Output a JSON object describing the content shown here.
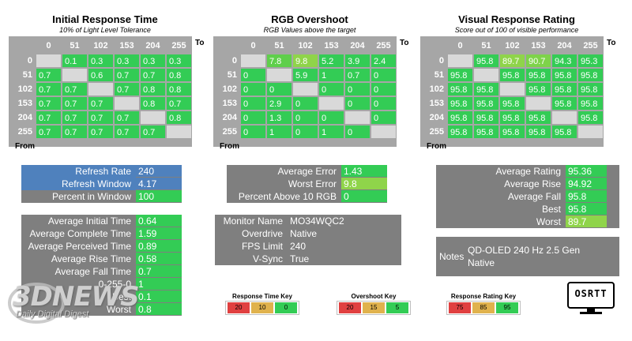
{
  "matrices": [
    {
      "id": "initial",
      "title": "Initial Response Time",
      "subtitle": "10% of Light Level Tolerance",
      "cols": [
        "0",
        "51",
        "102",
        "153",
        "204",
        "255"
      ],
      "rows": [
        "0",
        "51",
        "102",
        "153",
        "204",
        "255"
      ],
      "to_label": "To",
      "from_label": "From",
      "values": [
        [
          "",
          "0.1",
          "0.3",
          "0.3",
          "0.3",
          "0.3"
        ],
        [
          "0.7",
          "",
          "0.6",
          "0.7",
          "0.7",
          "0.8"
        ],
        [
          "0.7",
          "0.7",
          "",
          "0.7",
          "0.8",
          "0.8"
        ],
        [
          "0.7",
          "0.7",
          "0.7",
          "",
          "0.8",
          "0.7"
        ],
        [
          "0.7",
          "0.7",
          "0.7",
          "0.7",
          "",
          "0.8"
        ],
        [
          "0.7",
          "0.7",
          "0.7",
          "0.7",
          "0.7",
          ""
        ]
      ],
      "colors": [
        [
          "#d9d9d9",
          "#33cc55",
          "#33cc55",
          "#33cc55",
          "#33cc55",
          "#33cc55"
        ],
        [
          "#33cc55",
          "#d9d9d9",
          "#33cc55",
          "#33cc55",
          "#33cc55",
          "#33cc55"
        ],
        [
          "#33cc55",
          "#33cc55",
          "#d9d9d9",
          "#33cc55",
          "#33cc55",
          "#33cc55"
        ],
        [
          "#33cc55",
          "#33cc55",
          "#33cc55",
          "#d9d9d9",
          "#33cc55",
          "#33cc55"
        ],
        [
          "#33cc55",
          "#33cc55",
          "#33cc55",
          "#33cc55",
          "#d9d9d9",
          "#33cc55"
        ],
        [
          "#33cc55",
          "#33cc55",
          "#33cc55",
          "#33cc55",
          "#33cc55",
          "#d9d9d9"
        ]
      ]
    },
    {
      "id": "overshoot",
      "title": "RGB Overshoot",
      "subtitle": "RGB Values above the target",
      "cols": [
        "0",
        "51",
        "102",
        "153",
        "204",
        "255"
      ],
      "rows": [
        "0",
        "51",
        "102",
        "153",
        "204",
        "255"
      ],
      "to_label": "To",
      "from_label": "From",
      "values": [
        [
          "",
          "7.8",
          "9.8",
          "5.2",
          "3.9",
          "2.4"
        ],
        [
          "0",
          "",
          "5.9",
          "1",
          "0.7",
          "0"
        ],
        [
          "0",
          "0",
          "",
          "0",
          "0",
          "0"
        ],
        [
          "0",
          "2.9",
          "0",
          "",
          "0",
          "0"
        ],
        [
          "0",
          "1.3",
          "0",
          "0",
          "",
          "0"
        ],
        [
          "0",
          "1",
          "0",
          "1",
          "0",
          ""
        ]
      ],
      "colors": [
        [
          "#d9d9d9",
          "#5fcf4b",
          "#8fd44a",
          "#33cc55",
          "#33cc55",
          "#33cc55"
        ],
        [
          "#33cc55",
          "#d9d9d9",
          "#33cc55",
          "#33cc55",
          "#33cc55",
          "#33cc55"
        ],
        [
          "#33cc55",
          "#33cc55",
          "#d9d9d9",
          "#33cc55",
          "#33cc55",
          "#33cc55"
        ],
        [
          "#33cc55",
          "#33cc55",
          "#33cc55",
          "#d9d9d9",
          "#33cc55",
          "#33cc55"
        ],
        [
          "#33cc55",
          "#33cc55",
          "#33cc55",
          "#33cc55",
          "#d9d9d9",
          "#33cc55"
        ],
        [
          "#33cc55",
          "#33cc55",
          "#33cc55",
          "#33cc55",
          "#33cc55",
          "#d9d9d9"
        ]
      ]
    },
    {
      "id": "rating",
      "title": "Visual Response Rating",
      "subtitle": "Score out of 100 of visible performance",
      "cols": [
        "0",
        "51",
        "102",
        "153",
        "204",
        "255"
      ],
      "rows": [
        "0",
        "51",
        "102",
        "153",
        "204",
        "255"
      ],
      "to_label": "To",
      "from_label": "From",
      "values": [
        [
          "",
          "95.8",
          "89.7",
          "90.7",
          "94.3",
          "95.3"
        ],
        [
          "95.8",
          "",
          "95.8",
          "95.8",
          "95.8",
          "95.8"
        ],
        [
          "95.8",
          "95.8",
          "",
          "95.8",
          "95.8",
          "95.8"
        ],
        [
          "95.8",
          "95.8",
          "95.8",
          "",
          "95.8",
          "95.8"
        ],
        [
          "95.8",
          "95.8",
          "95.8",
          "95.8",
          "",
          "95.8"
        ],
        [
          "95.8",
          "95.8",
          "95.8",
          "95.8",
          "95.8",
          ""
        ]
      ],
      "colors": [
        [
          "#d9d9d9",
          "#33cc55",
          "#8fd44a",
          "#7ed34a",
          "#33cc55",
          "#33cc55"
        ],
        [
          "#33cc55",
          "#d9d9d9",
          "#33cc55",
          "#33cc55",
          "#33cc55",
          "#33cc55"
        ],
        [
          "#33cc55",
          "#33cc55",
          "#d9d9d9",
          "#33cc55",
          "#33cc55",
          "#33cc55"
        ],
        [
          "#33cc55",
          "#33cc55",
          "#33cc55",
          "#d9d9d9",
          "#33cc55",
          "#33cc55"
        ],
        [
          "#33cc55",
          "#33cc55",
          "#33cc55",
          "#33cc55",
          "#d9d9d9",
          "#33cc55"
        ],
        [
          "#33cc55",
          "#33cc55",
          "#33cc55",
          "#33cc55",
          "#33cc55",
          "#d9d9d9"
        ]
      ]
    }
  ],
  "refresh": {
    "rows": [
      {
        "label": "Refresh Rate",
        "value": "240"
      },
      {
        "label": "Refresh Window",
        "value": "4.17"
      },
      {
        "label": "Percent in Window",
        "value": "100"
      }
    ]
  },
  "error": {
    "rows": [
      {
        "label": "Average Error",
        "value": "1.43"
      },
      {
        "label": "Worst Error",
        "value": "9.8"
      },
      {
        "label": "Percent Above 10 RGB",
        "value": "0"
      }
    ]
  },
  "ratings": {
    "rows": [
      {
        "label": "Average Rating",
        "value": "95.36"
      },
      {
        "label": "Average Rise",
        "value": "94.92"
      },
      {
        "label": "Average Fall",
        "value": "95.8"
      },
      {
        "label": "Best",
        "value": "95.8"
      },
      {
        "label": "Worst",
        "value": "89.7"
      }
    ]
  },
  "times": {
    "rows": [
      {
        "label": "Average Initial Time",
        "value": "0.64"
      },
      {
        "label": "Average Complete Time",
        "value": "1.59"
      },
      {
        "label": "Average Perceived Time",
        "value": "0.89"
      },
      {
        "label": "Average Rise Time",
        "value": "0.58"
      },
      {
        "label": "Average Fall Time",
        "value": "0.7"
      },
      {
        "label": "0-255-0",
        "value": "1"
      },
      {
        "label": "Best",
        "value": "0.1"
      },
      {
        "label": "Worst",
        "value": "0.8"
      }
    ]
  },
  "monitor": {
    "rows": [
      {
        "label": "Monitor Name",
        "value": "MO34WQC2"
      },
      {
        "label": "Overdrive",
        "value": "Native"
      },
      {
        "label": "FPS Limit",
        "value": "240"
      },
      {
        "label": "V-Sync",
        "value": "True"
      }
    ]
  },
  "notes": {
    "label": "Notes",
    "value": "QD-OLED 240 Hz 2.5 Gen Native"
  },
  "keys": [
    {
      "title": "Response Time Key",
      "values": [
        "20",
        "10",
        "0"
      ]
    },
    {
      "title": "Overshoot Key",
      "values": [
        "20",
        "15",
        "5"
      ]
    },
    {
      "title": "Response Rating Key",
      "values": [
        "75",
        "85",
        "95"
      ]
    }
  ],
  "watermark": {
    "logo": "3DNEWS",
    "tagline": "Daily Digital Digest"
  },
  "brand": "OSRTT",
  "colors": {
    "green": "#33cc55",
    "panel": "#7f7f7f",
    "blue": "#4f81bd",
    "red": "#e04040",
    "amber": "#e0b24d"
  }
}
